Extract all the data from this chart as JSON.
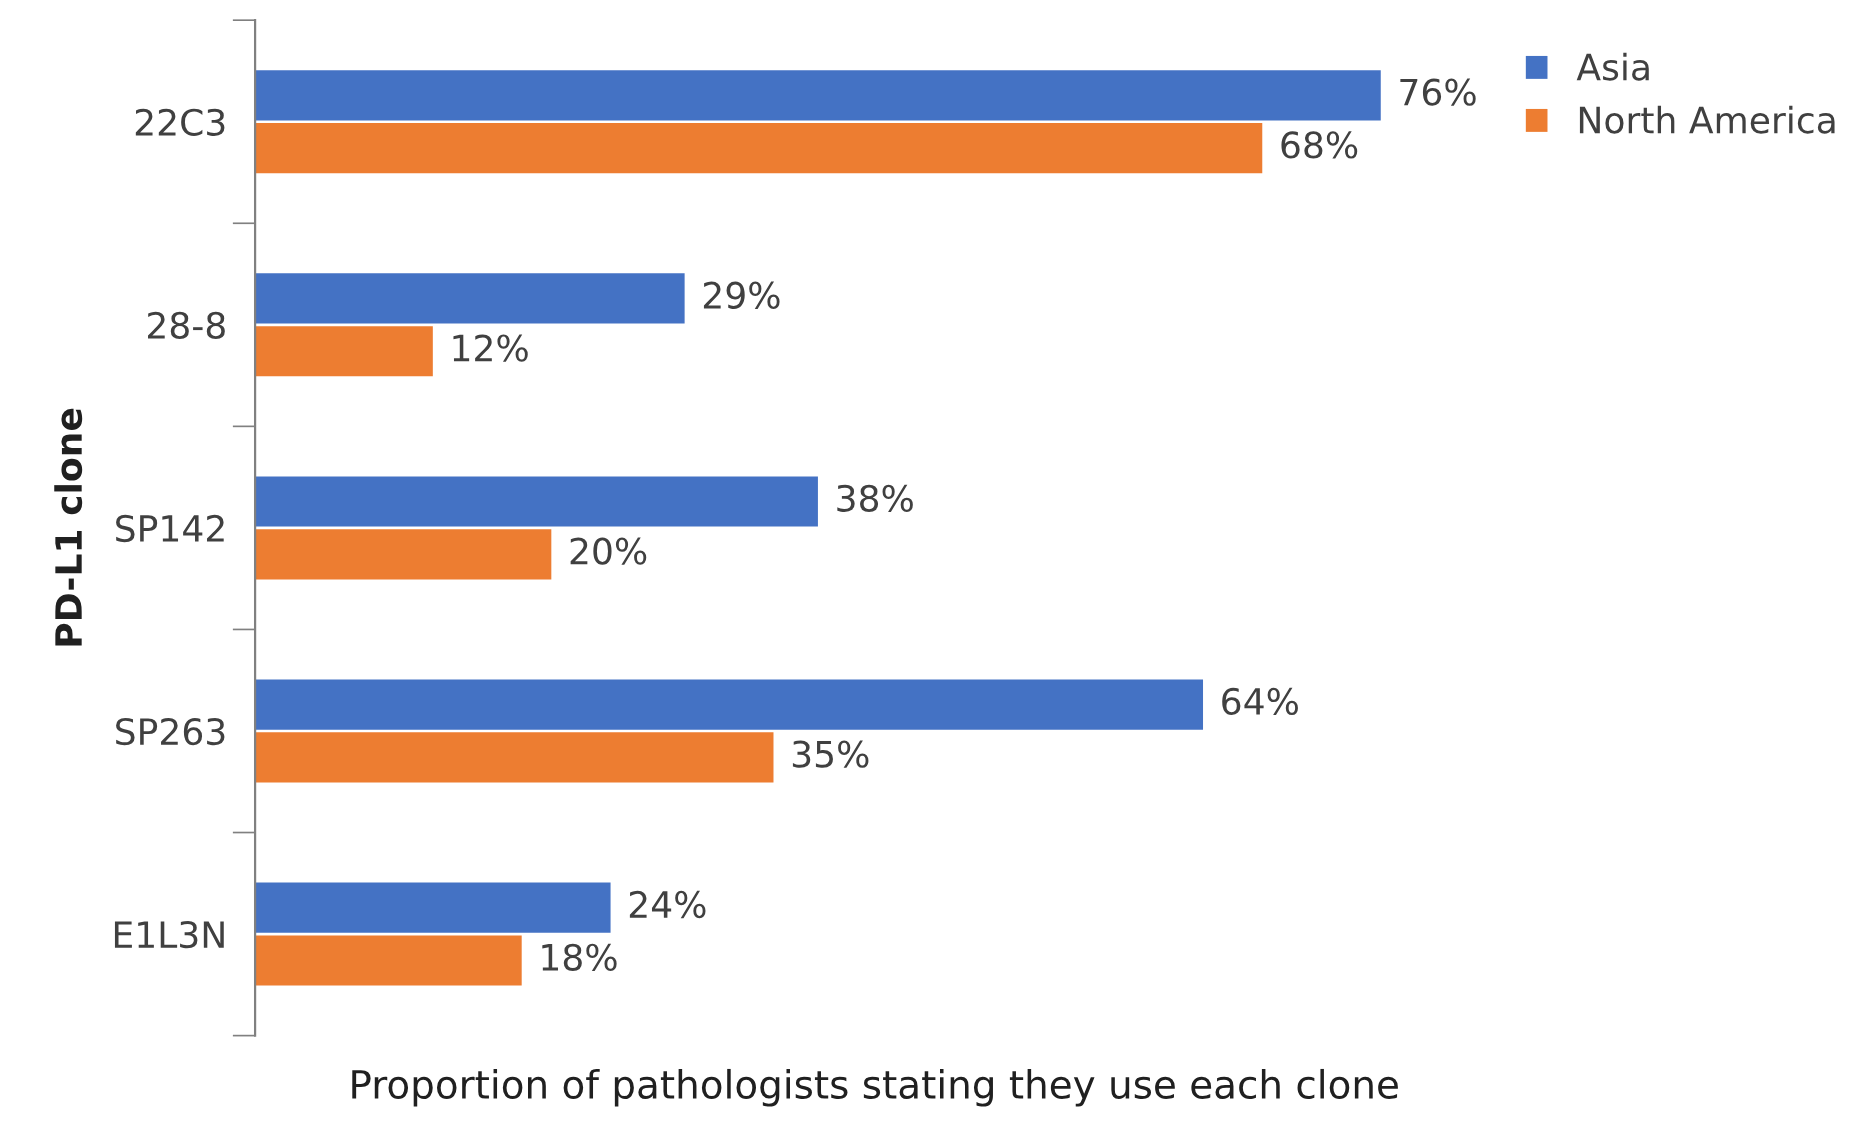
{
  "chart_data": {
    "type": "bar",
    "orientation": "horizontal",
    "ylabel": "PD-L1 clone",
    "xlabel": "Proportion of pathologists stating they use each clone",
    "categories": [
      "22C3",
      "28-8",
      "SP142",
      "SP263",
      "E1L3N"
    ],
    "series": [
      {
        "name": "Asia",
        "color": "#4472c4",
        "values": [
          76,
          29,
          38,
          64,
          24
        ],
        "value_labels": [
          "76%",
          "29%",
          "38%",
          "64%",
          "24%"
        ]
      },
      {
        "name": "North America",
        "color": "#ed7d31",
        "values": [
          68,
          12,
          20,
          35,
          18
        ],
        "value_labels": [
          "68%",
          "12%",
          "20%",
          "35%",
          "18%"
        ]
      }
    ],
    "legend": "top right",
    "grid": false
  }
}
